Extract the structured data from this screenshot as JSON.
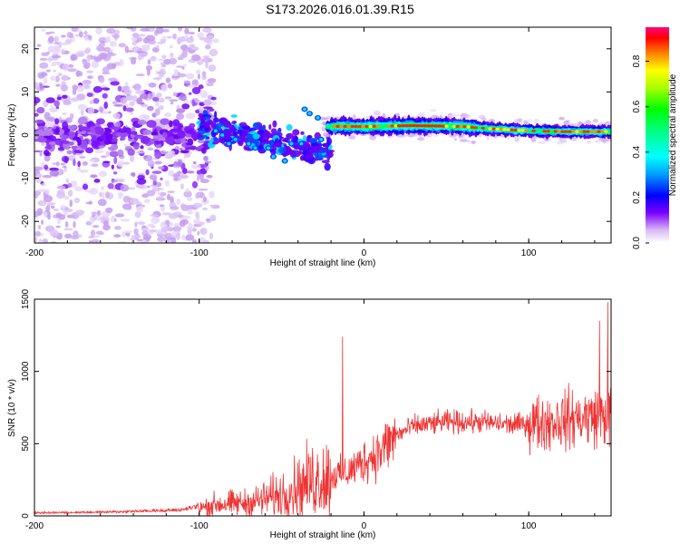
{
  "title": "S173.2026.016.01.39.R15",
  "chart_data": [
    {
      "type": "heatmap",
      "name": "spectrogram",
      "title": "S173.2026.016.01.39.R15",
      "xlabel": "Height of straight line (km)",
      "ylabel": "Frequency (Hz)",
      "xlim": [
        -200,
        150
      ],
      "ylim": [
        -25,
        25
      ],
      "xticks": [
        -200,
        -100,
        0,
        100
      ],
      "xtick_labels": [
        "-200",
        "-100",
        "0",
        "100"
      ],
      "yticks": [
        -20,
        -10,
        0,
        10,
        20
      ],
      "ytick_labels": [
        "-20",
        "-10",
        "0",
        "10",
        "20"
      ],
      "colorbar": {
        "label": "Normalized spectral amplitude",
        "range": [
          0,
          0.95
        ],
        "ticks": [
          0.0,
          0.2,
          0.4,
          0.6,
          0.8
        ],
        "tick_labels": [
          "0.0",
          "0.2",
          "0.4",
          "0.6",
          "0.8"
        ],
        "colormap": [
          "#d8b8f5",
          "#7a00ff",
          "#0000ff",
          "#00a0ff",
          "#00ffff",
          "#00ff80",
          "#00ff00",
          "#80ff00",
          "#ffff00",
          "#ff8000",
          "#ff0000",
          "#ff0080"
        ]
      },
      "ridge": [
        {
          "x": -25,
          "y": 2.0
        },
        {
          "x": 0,
          "y": 2.0
        },
        {
          "x": 30,
          "y": 2.2
        },
        {
          "x": 60,
          "y": 2.0
        },
        {
          "x": 75,
          "y": 1.5
        },
        {
          "x": 100,
          "y": 1.0
        },
        {
          "x": 120,
          "y": 0.8
        },
        {
          "x": 150,
          "y": 0.8
        }
      ]
    },
    {
      "type": "line",
      "name": "snr",
      "xlabel": "Height of straight line (km)",
      "ylabel": "SNR (10 * v/v)",
      "xlim": [
        -200,
        150
      ],
      "ylim": [
        0,
        1500
      ],
      "xticks": [
        -200,
        -100,
        0,
        100
      ],
      "xtick_labels": [
        "-200",
        "-100",
        "0",
        "100"
      ],
      "yticks": [
        0,
        500,
        1000,
        1500
      ],
      "ytick_labels": [
        "0",
        "500",
        "1000",
        "1500"
      ],
      "color": "#ee3333",
      "envelope": [
        {
          "x": -200,
          "y": 15
        },
        {
          "x": -150,
          "y": 20
        },
        {
          "x": -110,
          "y": 30
        },
        {
          "x": -100,
          "y": 50
        },
        {
          "x": -90,
          "y": 80
        },
        {
          "x": -70,
          "y": 90
        },
        {
          "x": -50,
          "y": 150
        },
        {
          "x": -30,
          "y": 250
        },
        {
          "x": -10,
          "y": 300
        },
        {
          "x": 0,
          "y": 380
        },
        {
          "x": 10,
          "y": 450
        },
        {
          "x": 20,
          "y": 560
        },
        {
          "x": 30,
          "y": 620
        },
        {
          "x": 50,
          "y": 650
        },
        {
          "x": 70,
          "y": 650
        },
        {
          "x": 90,
          "y": 630
        },
        {
          "x": 110,
          "y": 650
        },
        {
          "x": 130,
          "y": 680
        },
        {
          "x": 150,
          "y": 700
        }
      ],
      "spikes": [
        {
          "x": -13,
          "y": 1240
        },
        {
          "x": 143,
          "y": 1350
        },
        {
          "x": 148,
          "y": 1480
        }
      ]
    }
  ]
}
